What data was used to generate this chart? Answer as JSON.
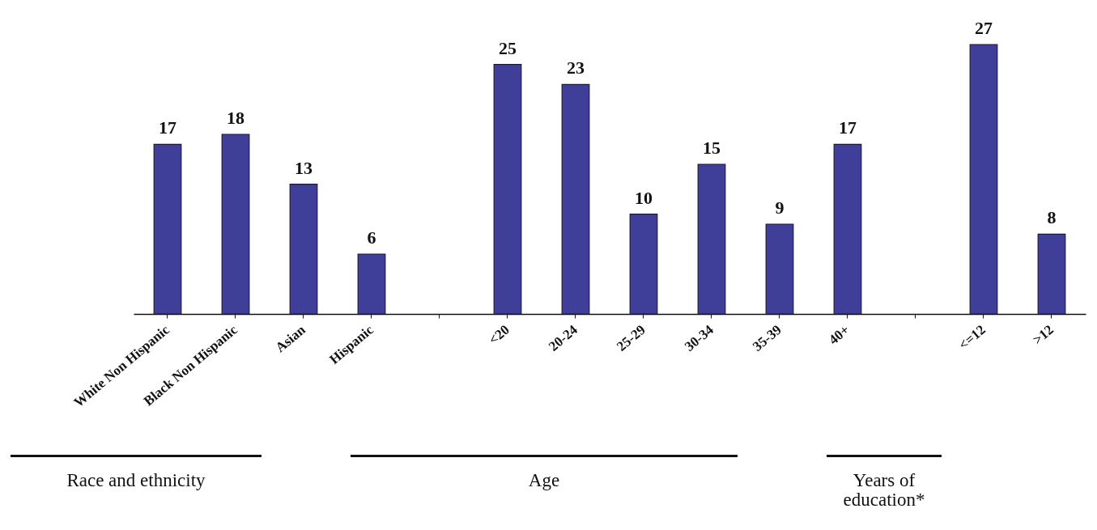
{
  "chart_data": {
    "type": "bar",
    "categories": [
      "White Non Hispanic",
      "Black Non Hispanic",
      "Asian",
      "Hispanic",
      null,
      "<20",
      "20-24",
      "25-29",
      "30-34",
      "35-39",
      "40+",
      null,
      "<=12",
      ">12"
    ],
    "values": [
      17,
      18,
      13,
      6,
      null,
      25,
      23,
      10,
      15,
      9,
      17,
      null,
      27,
      8
    ],
    "color": "#3f3f99",
    "data_labels": true,
    "annotations": [
      "Race and ethnicity",
      "Age",
      "Years of education*"
    ]
  }
}
